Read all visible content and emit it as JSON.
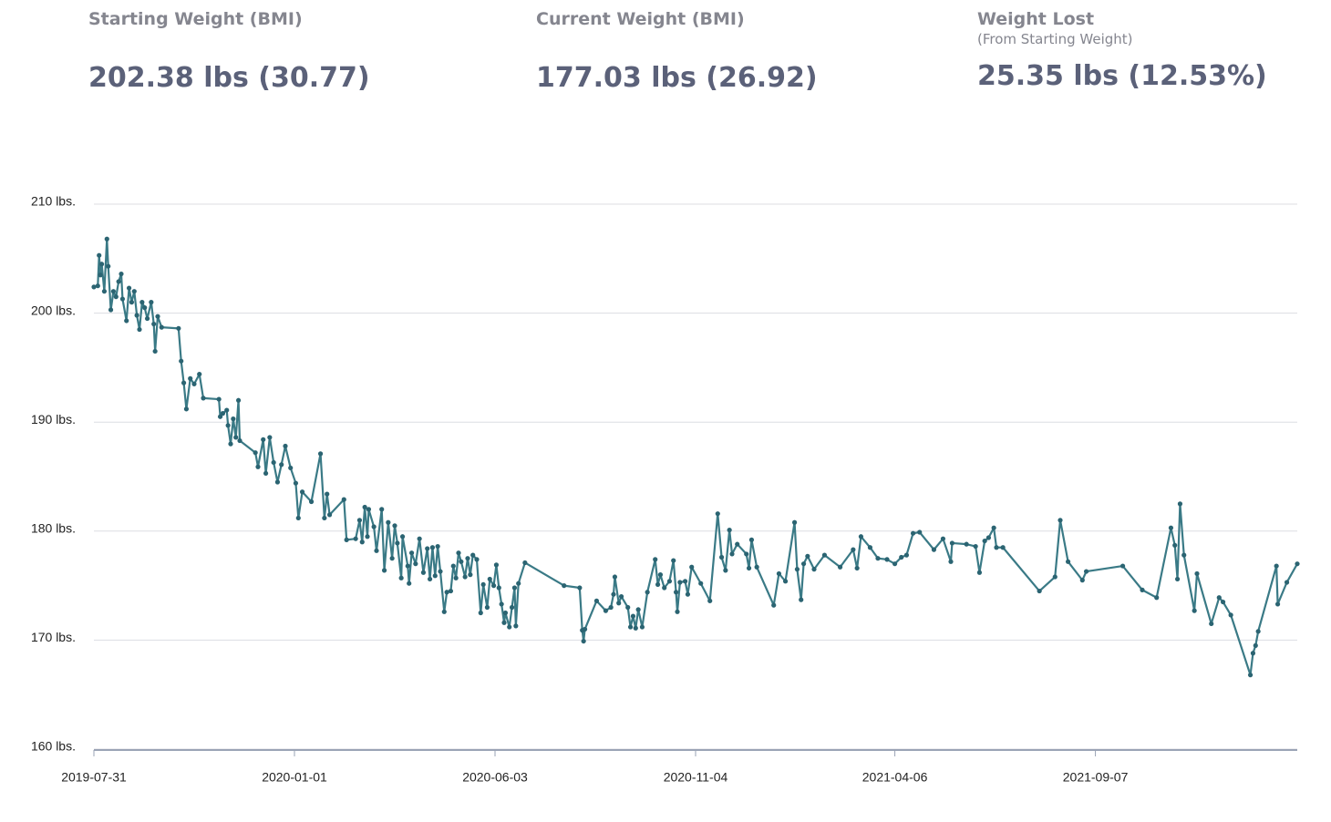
{
  "header": {
    "stats": [
      {
        "label": "Starting Weight (BMI)",
        "value": "202.38 lbs (30.77)"
      },
      {
        "label": "Current Weight (BMI)",
        "value": "177.03 lbs (26.92)"
      },
      {
        "label": "Weight Lost",
        "sublabel": "(From Starting Weight)",
        "value": "25.35 lbs (12.53%)"
      }
    ]
  },
  "chart_data": {
    "type": "line",
    "grid": true,
    "line_color": "#3a7a86",
    "marker_color": "#2b6472",
    "xlim": [
      "2019-07-31",
      "2022-02-09"
    ],
    "xticks": [
      "2019-07-31",
      "2020-01-01",
      "2020-06-03",
      "2020-11-04",
      "2021-04-06",
      "2021-09-07"
    ],
    "ylim": [
      160,
      210
    ],
    "yticks": [
      {
        "value": 160,
        "label": "160 lbs."
      },
      {
        "value": 170,
        "label": "170 lbs."
      },
      {
        "value": 180,
        "label": "180 lbs."
      },
      {
        "value": 190,
        "label": "190 lbs."
      },
      {
        "value": 200,
        "label": "200 lbs."
      },
      {
        "value": 210,
        "label": "210 lbs."
      }
    ],
    "x": [
      "2019-07-31",
      "2019-08-03",
      "2019-08-04",
      "2019-08-05",
      "2019-08-06",
      "2019-08-08",
      "2019-08-10",
      "2019-08-11",
      "2019-08-13",
      "2019-08-15",
      "2019-08-17",
      "2019-08-19",
      "2019-08-21",
      "2019-08-22",
      "2019-08-25",
      "2019-08-27",
      "2019-08-29",
      "2019-08-31",
      "2019-09-02",
      "2019-09-04",
      "2019-09-06",
      "2019-09-08",
      "2019-09-10",
      "2019-09-13",
      "2019-09-15",
      "2019-09-16",
      "2019-09-18",
      "2019-09-21",
      "2019-10-04",
      "2019-10-06",
      "2019-10-08",
      "2019-10-10",
      "2019-10-13",
      "2019-10-16",
      "2019-10-20",
      "2019-10-23",
      "2019-11-04",
      "2019-11-05",
      "2019-11-07",
      "2019-11-10",
      "2019-11-11",
      "2019-11-13",
      "2019-11-15",
      "2019-11-17",
      "2019-11-19",
      "2019-11-20",
      "2019-12-02",
      "2019-12-04",
      "2019-12-08",
      "2019-12-10",
      "2019-12-13",
      "2019-12-16",
      "2019-12-19",
      "2019-12-22",
      "2019-12-25",
      "2019-12-29",
      "2020-01-02",
      "2020-01-04",
      "2020-01-07",
      "2020-01-14",
      "2020-01-21",
      "2020-01-24",
      "2020-01-26",
      "2020-01-28",
      "2020-02-08",
      "2020-02-10",
      "2020-02-17",
      "2020-02-20",
      "2020-02-22",
      "2020-02-24",
      "2020-02-26",
      "2020-02-27",
      "2020-03-02",
      "2020-03-04",
      "2020-03-08",
      "2020-03-10",
      "2020-03-13",
      "2020-03-16",
      "2020-03-18",
      "2020-03-20",
      "2020-03-23",
      "2020-03-24",
      "2020-03-28",
      "2020-03-29",
      "2020-03-31",
      "2020-04-03",
      "2020-04-06",
      "2020-04-09",
      "2020-04-12",
      "2020-04-14",
      "2020-04-16",
      "2020-04-18",
      "2020-04-20",
      "2020-04-22",
      "2020-04-25",
      "2020-04-27",
      "2020-04-30",
      "2020-05-02",
      "2020-05-04",
      "2020-05-06",
      "2020-05-08",
      "2020-05-11",
      "2020-05-13",
      "2020-05-15",
      "2020-05-17",
      "2020-05-20",
      "2020-05-23",
      "2020-05-25",
      "2020-05-28",
      "2020-05-30",
      "2020-06-02",
      "2020-06-04",
      "2020-06-06",
      "2020-06-08",
      "2020-06-10",
      "2020-06-11",
      "2020-06-14",
      "2020-06-16",
      "2020-06-18",
      "2020-06-19",
      "2020-06-21",
      "2020-06-26",
      "2020-07-26",
      "2020-08-07",
      "2020-08-09",
      "2020-08-10",
      "2020-08-11",
      "2020-08-20",
      "2020-08-27",
      "2020-08-31",
      "2020-09-02",
      "2020-09-03",
      "2020-09-06",
      "2020-09-08",
      "2020-09-13",
      "2020-09-15",
      "2020-09-17",
      "2020-09-19",
      "2020-09-21",
      "2020-09-24",
      "2020-09-28",
      "2020-10-04",
      "2020-10-06",
      "2020-10-08",
      "2020-10-11",
      "2020-10-15",
      "2020-10-18",
      "2020-10-20",
      "2020-10-21",
      "2020-10-23",
      "2020-10-27",
      "2020-10-29",
      "2020-11-01",
      "2020-11-08",
      "2020-11-15",
      "2020-11-21",
      "2020-11-24",
      "2020-11-27",
      "2020-11-30",
      "2020-12-02",
      "2020-12-06",
      "2020-12-13",
      "2020-12-15",
      "2020-12-17",
      "2020-12-21",
      "2021-01-03",
      "2021-01-07",
      "2021-01-12",
      "2021-01-19",
      "2021-01-21",
      "2021-01-24",
      "2021-01-26",
      "2021-01-29",
      "2021-02-03",
      "2021-02-11",
      "2021-02-23",
      "2021-03-05",
      "2021-03-08",
      "2021-03-11",
      "2021-03-18",
      "2021-03-24",
      "2021-03-31",
      "2021-04-06",
      "2021-04-11",
      "2021-04-15",
      "2021-04-20",
      "2021-04-25",
      "2021-05-06",
      "2021-05-13",
      "2021-05-19",
      "2021-05-20",
      "2021-05-31",
      "2021-06-07",
      "2021-06-10",
      "2021-06-14",
      "2021-06-17",
      "2021-06-21",
      "2021-06-23",
      "2021-06-28",
      "2021-07-26",
      "2021-08-07",
      "2021-08-11",
      "2021-08-17",
      "2021-08-28",
      "2021-08-31",
      "2021-09-28",
      "2021-10-13",
      "2021-10-24",
      "2021-11-04",
      "2021-11-07",
      "2021-11-09",
      "2021-11-11",
      "2021-11-14",
      "2021-11-22",
      "2021-11-24",
      "2021-12-05",
      "2021-12-11",
      "2021-12-14",
      "2021-12-20",
      "2022-01-04",
      "2022-01-06",
      "2022-01-08",
      "2022-01-10",
      "2022-01-24",
      "2022-01-25",
      "2022-02-01",
      "2022-02-09"
    ],
    "values": [
      202.4,
      202.5,
      205.3,
      203.5,
      204.5,
      202.0,
      206.8,
      204.3,
      200.3,
      202.0,
      201.5,
      202.9,
      203.6,
      201.3,
      199.3,
      202.3,
      201.0,
      202.0,
      199.8,
      198.5,
      201.0,
      200.5,
      199.5,
      201.0,
      199.0,
      196.5,
      199.7,
      198.7,
      198.6,
      195.6,
      193.6,
      191.2,
      194.0,
      193.5,
      194.4,
      192.2,
      192.1,
      190.5,
      190.8,
      191.1,
      189.7,
      188.0,
      190.3,
      188.6,
      192.0,
      188.3,
      187.2,
      185.9,
      188.4,
      185.3,
      188.6,
      186.3,
      184.5,
      186.1,
      187.8,
      185.8,
      184.4,
      181.2,
      183.6,
      182.7,
      187.1,
      181.2,
      183.4,
      181.5,
      182.9,
      179.2,
      179.3,
      181.0,
      179.0,
      182.2,
      179.5,
      182.0,
      180.4,
      178.2,
      182.0,
      176.4,
      180.8,
      177.5,
      180.5,
      178.9,
      175.7,
      179.5,
      176.8,
      175.2,
      178.0,
      177.0,
      179.3,
      176.2,
      178.4,
      175.6,
      178.5,
      175.9,
      178.6,
      176.3,
      172.6,
      174.4,
      174.5,
      176.8,
      175.7,
      178.0,
      177.2,
      175.8,
      177.5,
      176.0,
      177.8,
      177.4,
      172.5,
      175.1,
      173.0,
      175.6,
      175.0,
      176.9,
      174.8,
      173.3,
      171.6,
      172.5,
      171.2,
      173.0,
      174.8,
      171.3,
      175.2,
      177.1,
      175.0,
      174.8,
      170.9,
      169.9,
      171.0,
      173.6,
      172.7,
      173.0,
      174.2,
      175.8,
      173.4,
      174.0,
      173.0,
      171.2,
      172.2,
      171.1,
      172.8,
      171.2,
      174.4,
      177.4,
      175.1,
      176.0,
      174.8,
      175.4,
      177.3,
      174.4,
      172.6,
      175.3,
      175.4,
      174.2,
      176.7,
      175.2,
      173.6,
      181.6,
      177.6,
      176.4,
      180.1,
      177.9,
      178.8,
      177.9,
      176.6,
      179.2,
      176.7,
      173.2,
      176.1,
      175.4,
      180.8,
      176.5,
      173.7,
      177.0,
      177.7,
      176.5,
      177.8,
      176.7,
      178.3,
      176.6,
      179.5,
      178.5,
      177.5,
      177.4,
      177.0,
      177.6,
      177.8,
      179.8,
      179.9,
      178.3,
      179.3,
      177.2,
      178.9,
      178.8,
      178.6,
      176.2,
      179.1,
      179.4,
      180.3,
      178.5,
      178.5,
      174.5,
      175.8,
      181.0,
      177.2,
      175.5,
      176.3,
      176.8,
      174.6,
      173.9,
      180.3,
      178.7,
      175.6,
      182.5,
      177.8,
      172.7,
      176.1,
      171.5,
      173.9,
      173.5,
      172.3,
      166.8,
      168.8,
      169.5,
      170.8,
      176.8,
      173.3,
      175.3,
      177.0
    ]
  }
}
